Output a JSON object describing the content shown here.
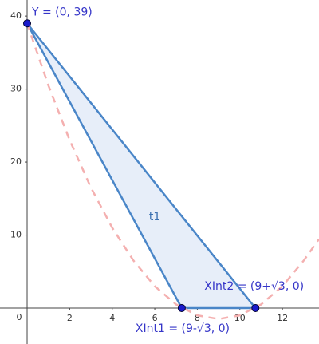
{
  "chart_data": {
    "type": "geometry",
    "xlim": [
      -1.275,
      13.72
    ],
    "ylim": [
      -4.92,
      42.2
    ],
    "xticks": [
      0,
      2,
      4,
      6,
      8,
      10,
      12
    ],
    "yticks": [
      10,
      20,
      30,
      40
    ],
    "curve": {
      "color": "#f4b0b0",
      "x": [
        0,
        1,
        2,
        3,
        4,
        5,
        6,
        7,
        8,
        9,
        10,
        11,
        12,
        13,
        13.72
      ],
      "values": [
        39,
        30.5,
        23,
        16.5,
        11,
        6.5,
        3,
        0.5,
        -1,
        -1.5,
        -1,
        0.5,
        3,
        6.5,
        9.44
      ]
    },
    "polygon": {
      "label": "t1",
      "color": "#4a86c8"
    },
    "points": [
      {
        "label": "Y = (0, 39)",
        "x": 0,
        "y": 39
      },
      {
        "label": "XInt1 = (9-√3, 0)",
        "x": 7.268,
        "y": 0
      },
      {
        "label": "XInt2 = (9+√3, 0)",
        "x": 10.732,
        "y": 0
      }
    ],
    "point_color": "#1a1acc"
  }
}
